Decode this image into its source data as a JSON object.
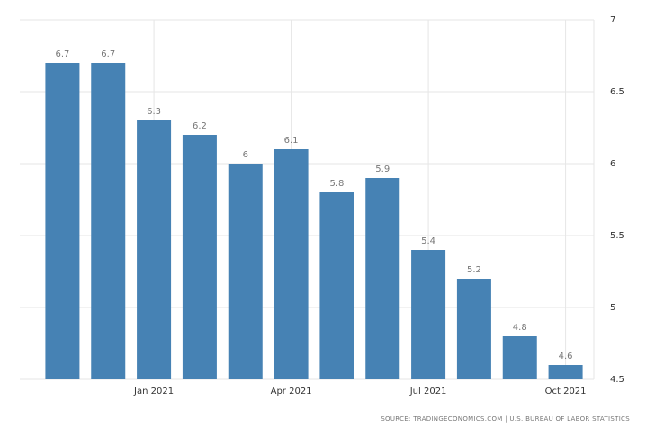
{
  "chart_data": {
    "type": "bar",
    "categories": [
      null,
      null,
      "Jan 2021",
      null,
      null,
      "Apr 2021",
      null,
      null,
      "Jul 2021",
      null,
      null,
      "Oct 2021"
    ],
    "values": [
      6.7,
      6.7,
      6.3,
      6.2,
      6,
      6.1,
      5.8,
      5.9,
      5.4,
      5.2,
      4.8,
      4.6
    ],
    "color": "#4682b4",
    "ylim": [
      4.5,
      7
    ],
    "yticks": [
      4.5,
      5,
      5.5,
      6,
      6.5,
      7
    ],
    "grid": true,
    "source": "SOURCE: TRADINGECONOMICS.COM | U.S. BUREAU OF LABOR STATISTICS"
  }
}
